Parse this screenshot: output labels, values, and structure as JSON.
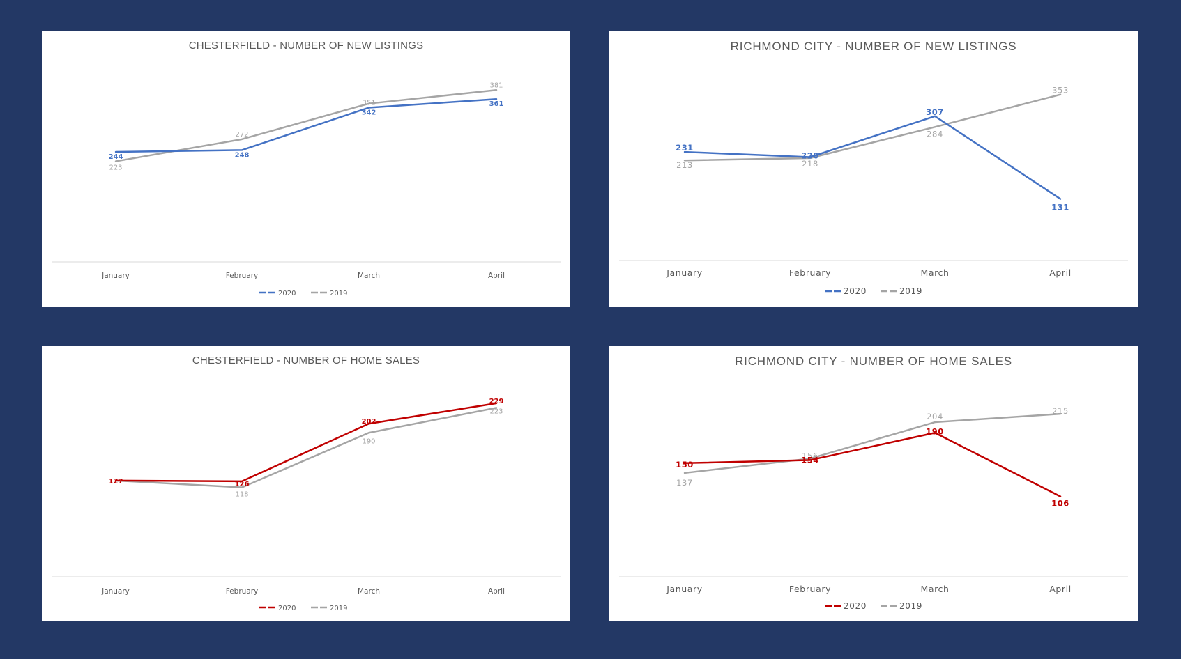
{
  "chart_data": [
    {
      "type": "line",
      "title": "CHESTERFIELD - NUMBER OF NEW LISTINGS",
      "categories": [
        "January",
        "February",
        "March",
        "April"
      ],
      "series": [
        {
          "name": "2020",
          "values": [
            244,
            248,
            342,
            361
          ],
          "color": "#4472C4"
        },
        {
          "name": "2019",
          "values": [
            223,
            272,
            351,
            381
          ],
          "color": "#A5A5A5"
        }
      ],
      "ylim": [
        0,
        420
      ],
      "grid": false,
      "legend": "bottom"
    },
    {
      "type": "line",
      "title": "RICHMOND CITY - NUMBER OF NEW LISTINGS",
      "categories": [
        "January",
        "February",
        "March",
        "April"
      ],
      "series": [
        {
          "name": "2020",
          "values": [
            231,
            220,
            307,
            131
          ],
          "color": "#4472C4"
        },
        {
          "name": "2019",
          "values": [
            213,
            218,
            284,
            353
          ],
          "color": "#A5A5A5"
        }
      ],
      "ylim": [
        0,
        400
      ],
      "grid": false,
      "legend": "bottom"
    },
    {
      "type": "line",
      "title": "CHESTERFIELD - NUMBER OF HOME SALES",
      "categories": [
        "January",
        "February",
        "March",
        "April"
      ],
      "series": [
        {
          "name": "2020",
          "values": [
            127,
            126,
            202,
            229
          ],
          "color": "#C00000"
        },
        {
          "name": "2019",
          "values": [
            127,
            118,
            190,
            223
          ],
          "color": "#A5A5A5"
        }
      ],
      "ylim": [
        0,
        250
      ],
      "grid": false,
      "legend": "bottom"
    },
    {
      "type": "line",
      "title": "RICHMOND CITY - NUMBER OF HOME SALES",
      "categories": [
        "January",
        "February",
        "March",
        "April"
      ],
      "series": [
        {
          "name": "2020",
          "values": [
            150,
            154,
            190,
            106
          ],
          "color": "#C00000"
        },
        {
          "name": "2019",
          "values": [
            137,
            156,
            204,
            215
          ],
          "color": "#A5A5A5"
        }
      ],
      "ylim": [
        0,
        250
      ],
      "grid": false,
      "legend": "bottom"
    }
  ]
}
